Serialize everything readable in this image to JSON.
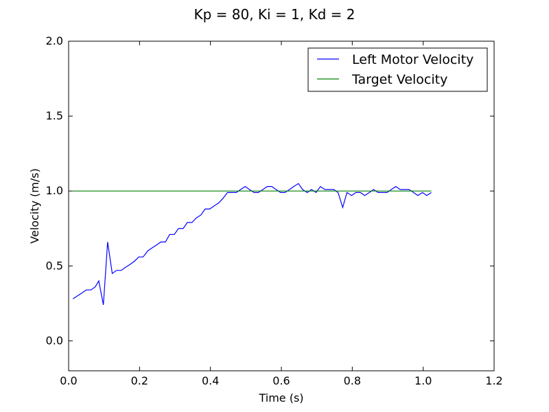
{
  "chart_data": {
    "type": "line",
    "title": "Kp = 80, Ki = 1, Kd = 2",
    "xlabel": "Time (s)",
    "ylabel": "Velocity (m/s)",
    "xlim": [
      0.0,
      1.2
    ],
    "ylim": [
      -0.2,
      2.0
    ],
    "xticks": [
      "0.0",
      "0.2",
      "0.4",
      "0.6",
      "0.8",
      "1.0",
      "1.2"
    ],
    "yticks": [
      "0.0",
      "0.5",
      "1.0",
      "1.5",
      "2.0"
    ],
    "grid": false,
    "legend_position": "top-right",
    "series": [
      {
        "name": "Left Motor Velocity",
        "color": "#0000ff",
        "x": [
          0.012,
          0.025,
          0.038,
          0.05,
          0.063,
          0.075,
          0.085,
          0.098,
          0.11,
          0.123,
          0.135,
          0.148,
          0.16,
          0.173,
          0.185,
          0.198,
          0.21,
          0.223,
          0.235,
          0.248,
          0.26,
          0.273,
          0.285,
          0.298,
          0.31,
          0.323,
          0.335,
          0.348,
          0.36,
          0.373,
          0.385,
          0.398,
          0.41,
          0.423,
          0.435,
          0.448,
          0.46,
          0.473,
          0.485,
          0.498,
          0.51,
          0.523,
          0.535,
          0.548,
          0.56,
          0.573,
          0.585,
          0.598,
          0.61,
          0.623,
          0.635,
          0.648,
          0.66,
          0.673,
          0.685,
          0.698,
          0.71,
          0.723,
          0.735,
          0.748,
          0.76,
          0.773,
          0.785,
          0.798,
          0.81,
          0.823,
          0.835,
          0.848,
          0.86,
          0.873,
          0.885,
          0.898,
          0.91,
          0.923,
          0.935,
          0.948,
          0.96,
          0.973,
          0.985,
          0.998,
          1.01,
          1.023
        ],
        "y": [
          0.28,
          0.3,
          0.32,
          0.34,
          0.34,
          0.36,
          0.4,
          0.24,
          0.66,
          0.45,
          0.47,
          0.47,
          0.49,
          0.51,
          0.53,
          0.56,
          0.56,
          0.6,
          0.62,
          0.64,
          0.66,
          0.66,
          0.71,
          0.71,
          0.75,
          0.75,
          0.79,
          0.79,
          0.82,
          0.84,
          0.88,
          0.88,
          0.9,
          0.92,
          0.95,
          0.99,
          0.99,
          0.99,
          1.01,
          1.03,
          1.01,
          0.99,
          0.99,
          1.01,
          1.03,
          1.03,
          1.01,
          0.99,
          0.99,
          1.01,
          1.03,
          1.05,
          1.01,
          0.99,
          1.01,
          0.99,
          1.03,
          1.01,
          1.01,
          1.01,
          0.99,
          0.89,
          0.99,
          0.97,
          0.99,
          0.99,
          0.97,
          0.99,
          1.01,
          0.99,
          0.99,
          0.99,
          1.01,
          1.03,
          1.01,
          1.01,
          1.01,
          0.99,
          0.97,
          0.99,
          0.97,
          0.99
        ]
      },
      {
        "name": "Target Velocity",
        "color": "#008000",
        "x": [
          0.012,
          1.023
        ],
        "y": [
          1.0,
          1.0
        ]
      }
    ]
  }
}
